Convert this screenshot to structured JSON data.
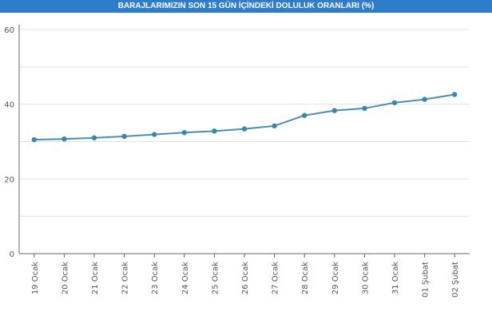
{
  "chart_data": {
    "type": "line",
    "title": "BARAJLARIMIZIN SON 15 GÜN İÇİNDEKİ DOLULUK ORANLARI (%)",
    "xlabel": "",
    "ylabel": "",
    "categories": [
      "19 Ocak",
      "20 Ocak",
      "21 Ocak",
      "22 Ocak",
      "23 Ocak",
      "24 Ocak",
      "25 Ocak",
      "26 Ocak",
      "27 Ocak",
      "28 Ocak",
      "29 Ocak",
      "30 Ocak",
      "31 Ocak",
      "01 Şubat",
      "02 Şubat"
    ],
    "series": [
      {
        "values": [
          30.5,
          30.7,
          31.0,
          31.4,
          31.9,
          32.4,
          32.8,
          33.4,
          34.2,
          37.0,
          38.3,
          38.9,
          40.4,
          41.3,
          42.6
        ]
      }
    ],
    "ylim": [
      0,
      60
    ],
    "yticks": [
      0,
      20,
      40,
      60
    ],
    "grid": true,
    "legend": "none",
    "colors": {
      "title_bar": "#2f7dc9",
      "line": "#4a8fb0",
      "point": "#3d86a8",
      "grid": "#e2e2e2",
      "axis": "#666666"
    }
  }
}
